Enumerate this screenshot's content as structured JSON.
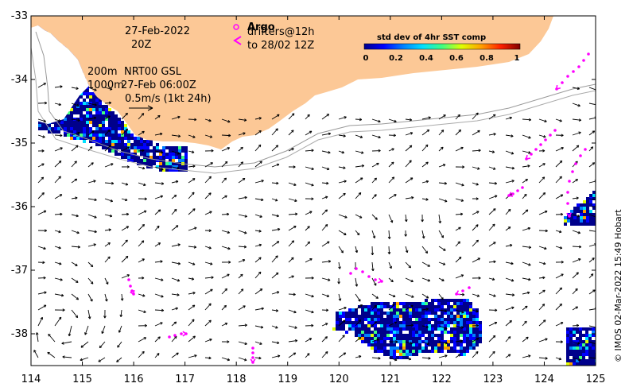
{
  "map": {
    "date_label": "27-Feb-2022",
    "time_label": "20Z",
    "depth_200_label": "200m",
    "depth_1000_label": "1000m",
    "product_label": "NRT00 GSL",
    "product_time_label": "27-Feb 06:00Z",
    "scale_label": "0.5m/s (1kt 24h)",
    "argo_label": "Argo",
    "drifters_label": "drifters@12h",
    "drifters_to_label": "to 28/02 12Z",
    "credit": "© IMOS 02-Mar-2022 15:49 Hobart",
    "land_color": "#fcc896",
    "drifter_color": "#ff00ff"
  },
  "colorbar": {
    "title": "std dev of 4hr SST comp",
    "ticks": [
      "0",
      "0.2",
      "0.4",
      "0.6",
      "0.8",
      "1"
    ],
    "colors": [
      "#00008b",
      "#0000ff",
      "#0080ff",
      "#00e0ff",
      "#40ff80",
      "#e0ff00",
      "#ffa000",
      "#ff2000",
      "#800000"
    ]
  },
  "axes": {
    "x_ticks": [
      "114",
      "115",
      "116",
      "117",
      "118",
      "119",
      "120",
      "121",
      "122",
      "123",
      "124",
      "125"
    ],
    "y_ticks": [
      "-33",
      "-34",
      "-35",
      "-36",
      "-37",
      "-38"
    ],
    "x_range": [
      114,
      125
    ],
    "y_range": [
      -38.5,
      -33
    ]
  }
}
